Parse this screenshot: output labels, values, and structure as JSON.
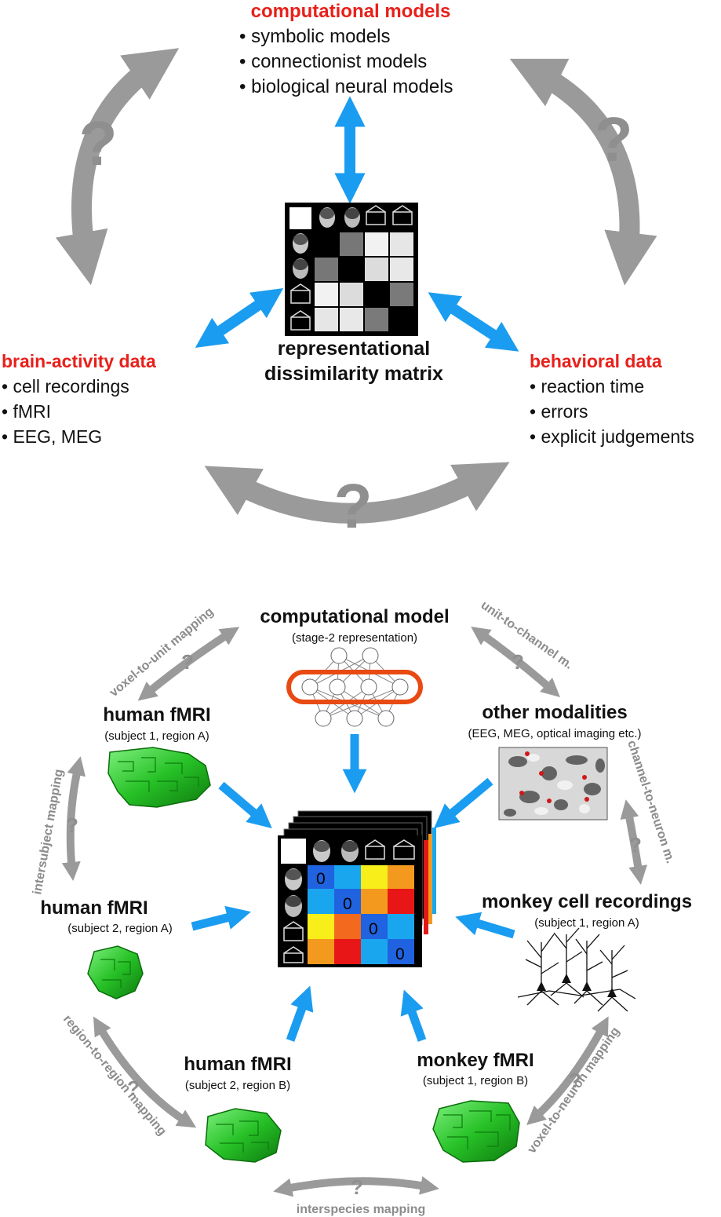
{
  "top": {
    "computational_models": {
      "title": "computational models",
      "items": [
        "• symbolic models",
        "• connectionist models",
        "• biological neural models"
      ]
    },
    "brain_activity": {
      "title": "brain-activity data",
      "items": [
        "• cell recordings",
        "• fMRI",
        "• EEG, MEG"
      ]
    },
    "behavioral": {
      "title": "behavioral data",
      "items": [
        "• reaction time",
        "• errors",
        "• explicit judgements"
      ]
    },
    "rdm_label": [
      "representational",
      "dissimilarity matrix"
    ],
    "question_mark": "?"
  },
  "bottom": {
    "computational_model": {
      "title": "computational model",
      "subtitle": "(stage-2 representation)"
    },
    "human_fmri_1": {
      "title": "human fMRI",
      "subtitle": "(subject 1, region A)"
    },
    "human_fmri_2": {
      "title": "human fMRI",
      "subtitle": "(subject 2, region A)"
    },
    "human_fmri_3": {
      "title": "human fMRI",
      "subtitle": "(subject 2, region B)"
    },
    "other_modalities": {
      "title": "other modalities",
      "subtitle": "(EEG, MEG, optical imaging etc.)"
    },
    "monkey_cells": {
      "title": "monkey cell recordings",
      "subtitle": "(subject 1, region A)"
    },
    "monkey_fmri": {
      "title": "monkey fMRI",
      "subtitle": "(subject 1, region B)"
    },
    "mappings": {
      "voxel_to_unit": "voxel-to-unit mapping",
      "unit_to_channel": "unit-to-channel m.",
      "intersubject": "intersubject mapping",
      "channel_to_neuron": "channel-to-neuron m.",
      "region_to_region": "region-to-region mapping",
      "voxel_to_neuron": "voxel-to-neuron mapping",
      "interspecies": "interspecies mapping"
    },
    "diagonal_zero": "0"
  },
  "colors": {
    "red_heading": "#e8201a",
    "blue_arrow": "#1a9cf0",
    "gray_arrow": "#9a9a9a",
    "network_highlight": "#e84a12",
    "brain_green": "#2fc82f"
  }
}
